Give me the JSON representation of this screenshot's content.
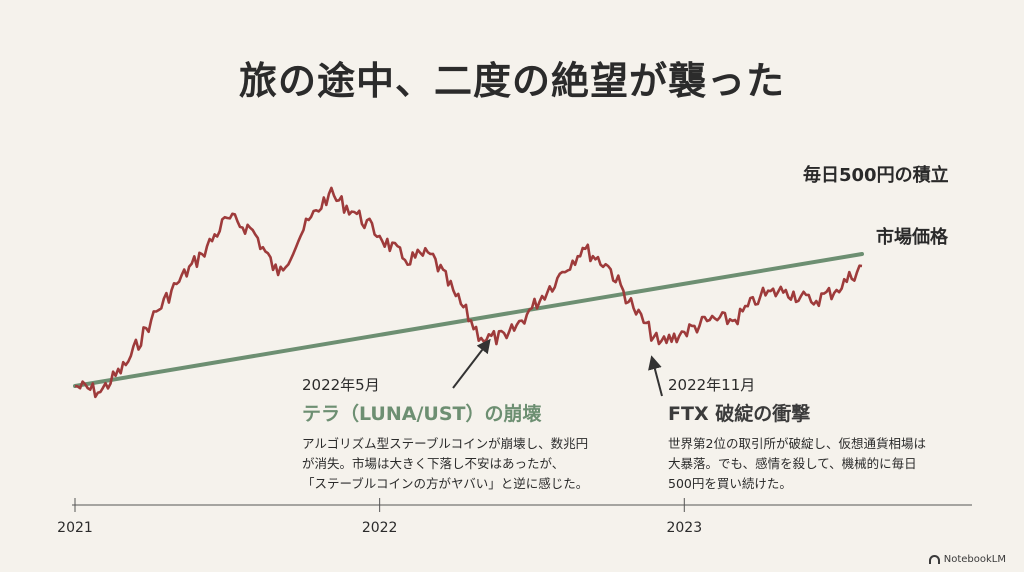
{
  "title": "旅の途中、二度の絶望が襲った",
  "colors": {
    "price": "#9e3b3b",
    "accumulation": "#6d8f72",
    "axis": "#555555",
    "background": "#f5f2ec"
  },
  "chart_data": {
    "type": "line",
    "x_ticks": [
      "2021",
      "2022",
      "2023"
    ],
    "xlim": [
      "2021-01",
      "2023-08"
    ],
    "ylim": [
      0,
      100
    ],
    "grid": false,
    "series": [
      {
        "name": "毎日500円の積立",
        "color": "#6d8f72",
        "x": [
          "2021-01",
          "2023-08"
        ],
        "y": [
          18,
          62
        ]
      },
      {
        "name": "市場価格",
        "color": "#9e3b3b",
        "x": [
          "2021-01",
          "2021-02",
          "2021-03",
          "2021-04",
          "2021-05",
          "2021-06",
          "2021-07",
          "2021-08",
          "2021-09",
          "2021-10",
          "2021-11",
          "2021-12",
          "2022-01",
          "2022-02",
          "2022-03",
          "2022-04",
          "2022-05",
          "2022-06",
          "2022-07",
          "2022-08",
          "2022-09",
          "2022-10",
          "2022-11",
          "2022-12",
          "2023-01",
          "2023-02",
          "2023-03",
          "2023-04",
          "2023-05",
          "2023-06",
          "2023-07",
          "2023-08"
        ],
        "y": [
          18,
          16,
          25,
          40,
          52,
          62,
          74,
          70,
          55,
          70,
          82,
          76,
          68,
          60,
          62,
          48,
          34,
          34,
          44,
          54,
          64,
          58,
          44,
          32,
          36,
          40,
          40,
          48,
          50,
          46,
          50,
          58
        ]
      }
    ],
    "annotations": [
      {
        "date": "2022年5月",
        "heading": "テラ（LUNA/UST）の崩壊",
        "text": "アルゴリズム型ステーブルコインが崩壊し、数兆円\nが消失。市場は大きく下落し不安はあったが、\n「ステーブルコインの方がヤバい」と逆に感じた。"
      },
      {
        "date": "2022年11月",
        "heading": "FTX 破綻の衝撃",
        "text": "世界第2位の取引所が破綻し、仮想通貨相場は\n大暴落。でも、感情を殺して、機械的に毎日\n500円を買い続けた。"
      }
    ]
  },
  "brand": "NotebookLM"
}
